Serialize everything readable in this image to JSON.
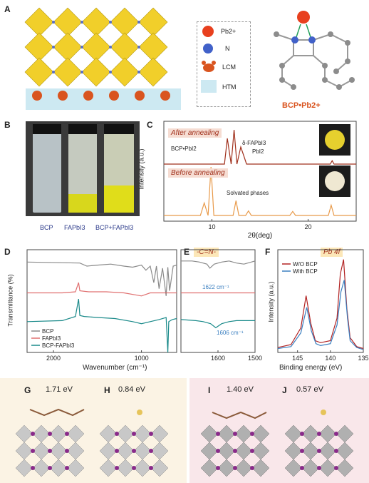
{
  "panels": {
    "a": {
      "label": "A",
      "legend": {
        "pb": "Pb2+",
        "n": "N",
        "lcm": "LCM",
        "htm": "HTM"
      },
      "molecule_label": "BCP•Pb2+"
    },
    "b": {
      "label": "B",
      "vials": [
        {
          "label": "BCP"
        },
        {
          "label": "FAPbI3"
        },
        {
          "label": "BCP+FAPbI3"
        }
      ]
    },
    "c": {
      "label": "C",
      "annot_after": "After annealing",
      "annot_before": "Before annealing",
      "peak_bcp": "BCP•PbI2",
      "peak_delta": "δ-FAPbI3",
      "peak_pbi2": "PbI2",
      "solvated": "Solvated phases"
    },
    "d": {
      "label": "D"
    },
    "e": {
      "label": "E",
      "bond": "-C=N-",
      "annot_top": "1622 cm⁻¹",
      "annot_bottom": "1606 cm⁻¹"
    },
    "f": {
      "label": "F",
      "title": "Pb 4f"
    },
    "g": {
      "label": "G",
      "energy": "1.71 eV"
    },
    "h": {
      "label": "H",
      "energy": "0.84 eV"
    },
    "i": {
      "label": "I",
      "energy": "1.40 eV"
    },
    "j": {
      "label": "J",
      "energy": "0.57 eV"
    }
  },
  "chart_data": [
    {
      "id": "C",
      "type": "line",
      "xlabel": "2θ(deg)",
      "ylabel": "Intensity (a.u.)",
      "xlim": [
        5,
        25
      ],
      "xticks": [
        10,
        20
      ],
      "series": [
        {
          "name": "After annealing",
          "color": "#a0301c",
          "x": [
            5,
            9,
            11.3,
            11.6,
            12,
            12.3,
            12.6,
            13,
            13.3,
            13.6,
            14,
            18,
            22.3,
            22.5,
            22.7,
            25
          ],
          "y": [
            1.0,
            1.0,
            1.0,
            1.45,
            1.0,
            1.6,
            1.0,
            1.3,
            1.15,
            1.0,
            1.0,
            1.0,
            1.0,
            1.06,
            1.0,
            1.0
          ]
        },
        {
          "name": "Before annealing",
          "color": "#e89a4a",
          "x": [
            5,
            8.8,
            9.2,
            9.6,
            9.9,
            10.2,
            10.6,
            12.2,
            12.5,
            12.8,
            13.5,
            13.8,
            14.1,
            18.1,
            18.4,
            18.7,
            22.1,
            22.4,
            22.7,
            25
          ],
          "y": [
            0.1,
            0.1,
            0.32,
            0.1,
            0.95,
            0.1,
            0.1,
            0.1,
            0.36,
            0.1,
            0.1,
            0.18,
            0.1,
            0.1,
            0.17,
            0.1,
            0.1,
            0.28,
            0.1,
            0.1
          ]
        }
      ]
    },
    {
      "id": "D",
      "type": "line",
      "xlabel": "Wavenumber (cm⁻¹)",
      "ylabel": "Transmittance (%)",
      "xlim": [
        2300,
        600
      ],
      "xticks": [
        2000,
        1000
      ],
      "legend_position": "bottom-left",
      "series": [
        {
          "name": "BCP",
          "color": "#8a8a8a",
          "x": [
            2300,
            1700,
            1620,
            1500,
            1350,
            1200,
            1100,
            1000,
            950,
            900,
            860,
            830,
            800,
            760,
            720,
            700,
            680,
            640,
            600
          ],
          "y": [
            0.88,
            0.87,
            0.84,
            0.85,
            0.86,
            0.84,
            0.83,
            0.85,
            0.8,
            0.84,
            0.68,
            0.84,
            0.62,
            0.82,
            0.55,
            0.83,
            0.6,
            0.84,
            0.85
          ]
        },
        {
          "name": "FAPbI3",
          "color": "#e07070",
          "x": [
            2300,
            1900,
            1750,
            1715,
            1700,
            1600,
            1400,
            1200,
            1000,
            900,
            800,
            700,
            600
          ],
          "y": [
            0.58,
            0.58,
            0.59,
            0.68,
            0.6,
            0.59,
            0.59,
            0.58,
            0.55,
            0.58,
            0.58,
            0.58,
            0.58
          ]
        },
        {
          "name": "BCP-FAPbI3",
          "color": "#1a8a8a",
          "x": [
            2300,
            1900,
            1750,
            1715,
            1700,
            1650,
            1500,
            1300,
            1100,
            1000,
            900,
            800,
            720,
            700,
            690,
            650,
            600
          ],
          "y": [
            0.3,
            0.31,
            0.35,
            0.52,
            0.36,
            0.35,
            0.34,
            0.33,
            0.3,
            0.28,
            0.3,
            0.32,
            0.34,
            0.0,
            0.3,
            0.32,
            0.33
          ]
        }
      ]
    },
    {
      "id": "E",
      "type": "line",
      "xlim": [
        1700,
        1500
      ],
      "xticks": [
        1600,
        1500
      ],
      "series": [
        {
          "name": "BCP",
          "color": "#8a8a8a",
          "x": [
            1700,
            1670,
            1650,
            1630,
            1622,
            1610,
            1590,
            1570,
            1550,
            1530,
            1510,
            1500
          ],
          "y": [
            0.89,
            0.89,
            0.88,
            0.86,
            0.82,
            0.86,
            0.88,
            0.89,
            0.87,
            0.86,
            0.88,
            0.89
          ]
        },
        {
          "name": "FAPbI3",
          "color": "#e07070",
          "x": [
            1700,
            1500
          ],
          "y": [
            0.58,
            0.58
          ]
        },
        {
          "name": "BCP-FAPbI3",
          "color": "#1a8a8a",
          "x": [
            1700,
            1660,
            1640,
            1620,
            1606,
            1590,
            1570,
            1550,
            1530,
            1500
          ],
          "y": [
            0.32,
            0.31,
            0.3,
            0.28,
            0.24,
            0.28,
            0.3,
            0.31,
            0.31,
            0.31
          ]
        }
      ]
    },
    {
      "id": "F",
      "type": "line",
      "xlabel": "Binding energy (eV)",
      "ylabel": "Intensity (a.u.)",
      "xlim": [
        148,
        135
      ],
      "xticks": [
        145,
        140,
        135
      ],
      "legend_position": "top-left",
      "series": [
        {
          "name": "W/O BCP",
          "color": "#b22222",
          "x": [
            148,
            146,
            144.5,
            143.7,
            143.0,
            142.3,
            141.5,
            140,
            139.0,
            138.5,
            138.0,
            137.5,
            137,
            136,
            135
          ],
          "y": [
            0.05,
            0.08,
            0.25,
            0.58,
            0.3,
            0.12,
            0.1,
            0.12,
            0.35,
            0.8,
            0.95,
            0.45,
            0.15,
            0.06,
            0.04
          ]
        },
        {
          "name": "With BCP",
          "color": "#3a7fc0",
          "x": [
            148,
            146,
            144.5,
            143.6,
            142.9,
            142.2,
            141.5,
            140,
            139.0,
            138.4,
            137.9,
            137.4,
            137,
            136,
            135
          ],
          "y": [
            0.04,
            0.06,
            0.2,
            0.46,
            0.22,
            0.09,
            0.07,
            0.09,
            0.28,
            0.62,
            0.74,
            0.35,
            0.12,
            0.05,
            0.03
          ]
        }
      ]
    }
  ]
}
